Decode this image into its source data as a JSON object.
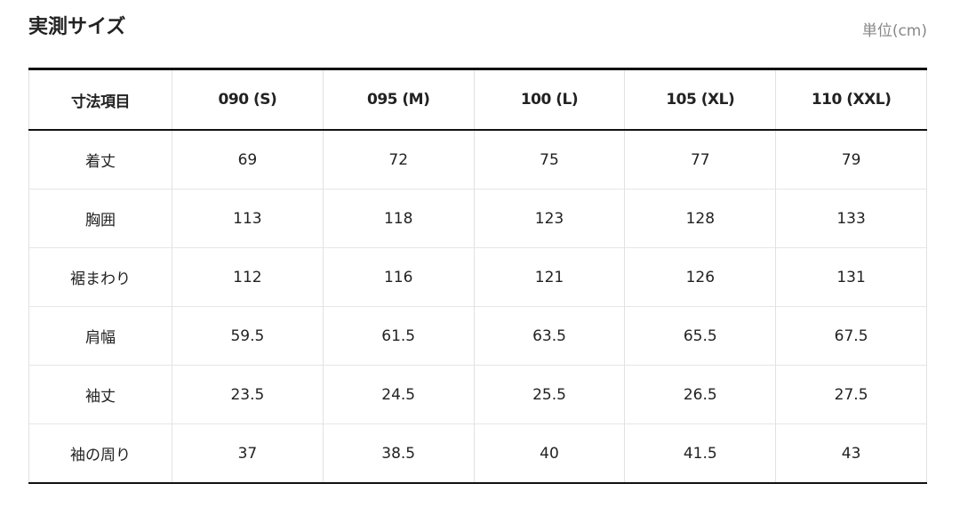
{
  "header": {
    "title": "実測サイズ",
    "unit": "単位(cm)"
  },
  "table": {
    "columns": [
      "寸法項目",
      "090 (S)",
      "095 (M)",
      "100 (L)",
      "105 (XL)",
      "110 (XXL)"
    ],
    "rows": [
      [
        "着丈",
        "69",
        "72",
        "75",
        "77",
        "79"
      ],
      [
        "胸囲",
        "113",
        "118",
        "123",
        "128",
        "133"
      ],
      [
        "裾まわり",
        "112",
        "116",
        "121",
        "126",
        "131"
      ],
      [
        "肩幅",
        "59.5",
        "61.5",
        "63.5",
        "65.5",
        "67.5"
      ],
      [
        "袖丈",
        "23.5",
        "24.5",
        "25.5",
        "26.5",
        "27.5"
      ],
      [
        "袖の周り",
        "37",
        "38.5",
        "40",
        "41.5",
        "43"
      ]
    ]
  }
}
